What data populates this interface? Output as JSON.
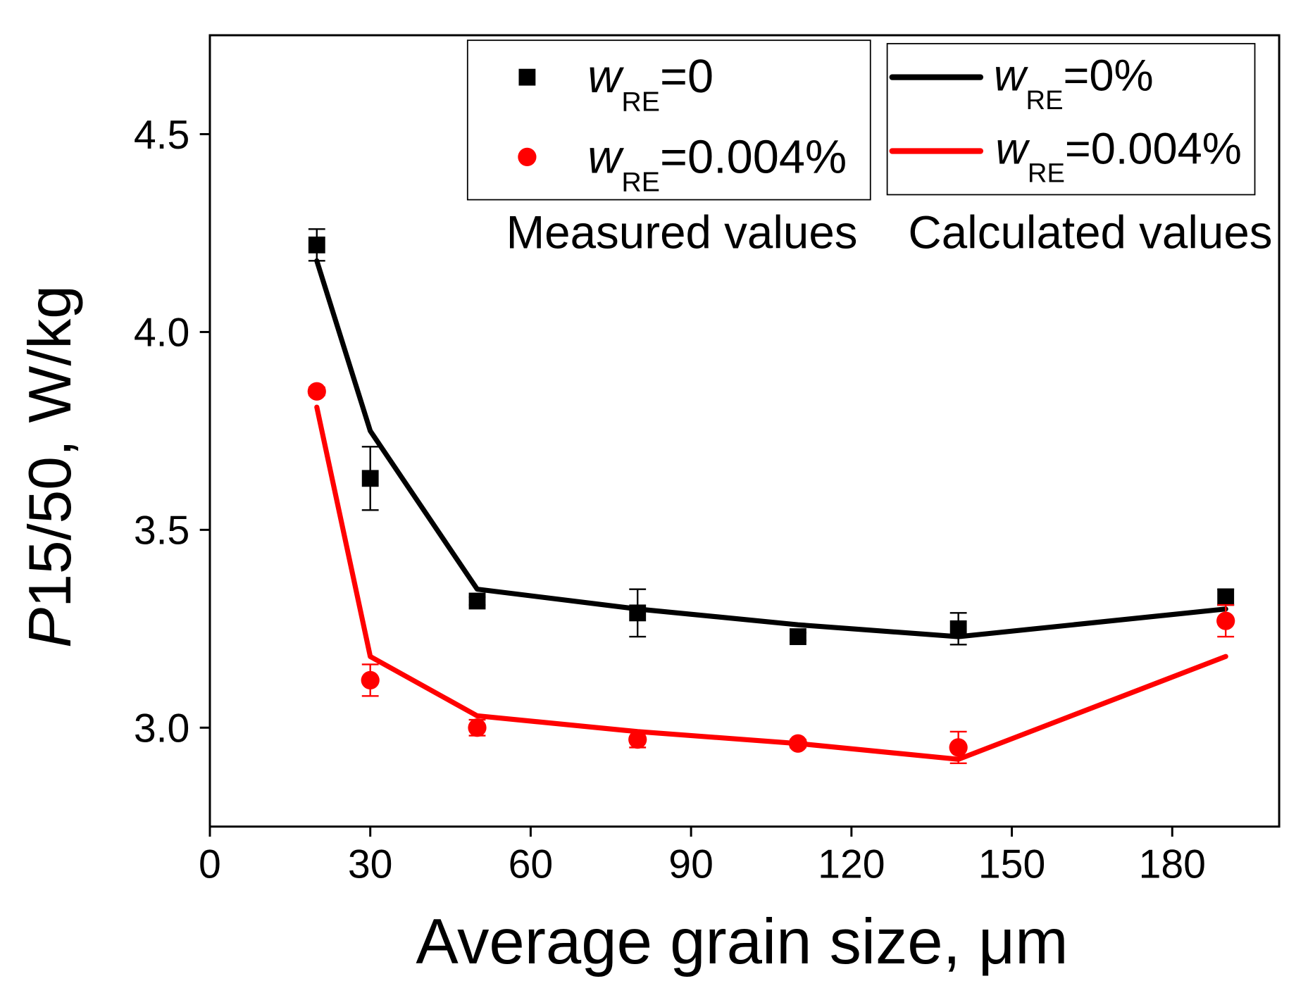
{
  "chart_data": {
    "type": "line",
    "xlabel": "Average grain size, μm",
    "ylabel": {
      "italic": "P",
      "text": "15/50, W/kg"
    },
    "xlim": [
      0,
      200
    ],
    "ylim": [
      2.75,
      4.75
    ],
    "xticks": [
      "0",
      "30",
      "60",
      "90",
      "120",
      "150",
      "180"
    ],
    "yticks": [
      "3.0",
      "3.5",
      "4.0",
      "4.5"
    ],
    "grid": false,
    "measured": {
      "title": "Measured values",
      "legend_position": "top-center",
      "series": [
        {
          "label": {
            "var": "w",
            "sub": "RE",
            "value": "=0"
          },
          "marker": "square",
          "color": "#000000",
          "x": [
            20,
            30,
            50,
            80,
            110,
            140,
            190
          ],
          "y": [
            4.22,
            3.63,
            3.32,
            3.29,
            3.23,
            3.25,
            3.33
          ],
          "error": [
            0.04,
            0.08,
            0.01,
            0.06,
            0.01,
            0.04,
            0.02
          ]
        },
        {
          "label": {
            "var": "w",
            "sub": "RE",
            "value": "=0.004%"
          },
          "marker": "circle",
          "color": "#ff0000",
          "x": [
            20,
            30,
            50,
            80,
            110,
            140,
            190
          ],
          "y": [
            3.85,
            3.12,
            3.0,
            2.97,
            2.96,
            2.95,
            3.27
          ],
          "error": [
            0.01,
            0.04,
            0.02,
            0.02,
            0.01,
            0.04,
            0.04
          ]
        }
      ]
    },
    "calculated": {
      "title": "Calculated values",
      "legend_position": "top-right",
      "series": [
        {
          "label": {
            "var": "w",
            "sub": "RE",
            "value": "=0%"
          },
          "color": "#000000",
          "x": [
            20,
            30,
            50,
            80,
            110,
            140,
            190
          ],
          "y": [
            4.18,
            3.75,
            3.35,
            3.3,
            3.26,
            3.23,
            3.3
          ]
        },
        {
          "label": {
            "var": "w",
            "sub": "RE",
            "value": "=0.004%"
          },
          "color": "#ff0000",
          "x": [
            20,
            30,
            50,
            80,
            110,
            140,
            190
          ],
          "y": [
            3.81,
            3.18,
            3.03,
            2.99,
            2.96,
            2.92,
            3.18
          ]
        }
      ]
    }
  }
}
